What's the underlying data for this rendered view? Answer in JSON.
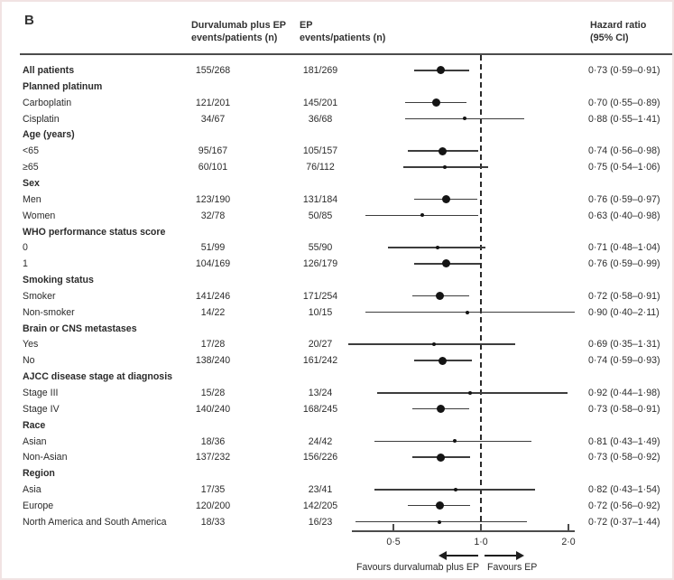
{
  "panel_label": "B",
  "columns": {
    "durvalumab": [
      "Durvalumab plus EP",
      "events/patients (n)"
    ],
    "ep": [
      "EP",
      "events/patients (n)"
    ],
    "hazard": [
      "Hazard ratio",
      "(95% CI)"
    ]
  },
  "chart_data": {
    "type": "scatter",
    "subtype": "forest-plot",
    "x_scale": "log2",
    "x_axis_range": [
      0.37,
      2.11
    ],
    "x_ticks": [
      0.5,
      1.0,
      2.0
    ],
    "x_tick_labels": [
      "0·5",
      "1·0",
      "2·0"
    ],
    "reference_line": 1.0,
    "favours_left": "Favours durvalumab plus EP",
    "favours_right": "Favours EP",
    "line_color": "#3d3d3d",
    "marker_color": "#141414",
    "rows": [
      {
        "label": "All patients",
        "bold": true,
        "durvalumab": "155/268",
        "ep": "181/269",
        "hr": 0.73,
        "ci_low": 0.59,
        "ci_high": 0.91,
        "hr_text": "0·73 (0·59–0·91)",
        "marker": "large"
      },
      {
        "label": "Planned platinum",
        "group": true
      },
      {
        "label": "Carboplatin",
        "durvalumab": "121/201",
        "ep": "145/201",
        "hr": 0.7,
        "ci_low": 0.55,
        "ci_high": 0.89,
        "hr_text": "0·70 (0·55–0·89)",
        "marker": "large"
      },
      {
        "label": "Cisplatin",
        "durvalumab": "34/67",
        "ep": "36/68",
        "hr": 0.88,
        "ci_low": 0.55,
        "ci_high": 1.41,
        "hr_text": "0·88 (0·55–1·41)",
        "marker": "small"
      },
      {
        "label": "Age (years)",
        "group": true
      },
      {
        "label": "<65",
        "durvalumab": "95/167",
        "ep": "105/157",
        "hr": 0.74,
        "ci_low": 0.56,
        "ci_high": 0.98,
        "hr_text": "0·74 (0·56–0·98)",
        "marker": "large"
      },
      {
        "label": "≥65",
        "durvalumab": "60/101",
        "ep": "76/112",
        "hr": 0.75,
        "ci_low": 0.54,
        "ci_high": 1.06,
        "hr_text": "0·75 (0·54–1·06)",
        "marker": "small"
      },
      {
        "label": "Sex",
        "group": true
      },
      {
        "label": "Men",
        "durvalumab": "123/190",
        "ep": "131/184",
        "hr": 0.76,
        "ci_low": 0.59,
        "ci_high": 0.97,
        "hr_text": "0·76 (0·59–0·97)",
        "marker": "large"
      },
      {
        "label": "Women",
        "durvalumab": "32/78",
        "ep": "50/85",
        "hr": 0.63,
        "ci_low": 0.4,
        "ci_high": 0.98,
        "hr_text": "0·63 (0·40–0·98)",
        "marker": "small"
      },
      {
        "label": "WHO performance status score",
        "group": true
      },
      {
        "label": "0",
        "durvalumab": "51/99",
        "ep": "55/90",
        "hr": 0.71,
        "ci_low": 0.48,
        "ci_high": 1.04,
        "hr_text": "0·71 (0·48–1·04)",
        "marker": "small"
      },
      {
        "label": "1",
        "durvalumab": "104/169",
        "ep": "126/179",
        "hr": 0.76,
        "ci_low": 0.59,
        "ci_high": 0.99,
        "hr_text": "0·76 (0·59–0·99)",
        "marker": "large"
      },
      {
        "label": "Smoking status",
        "group": true
      },
      {
        "label": "Smoker",
        "durvalumab": "141/246",
        "ep": "171/254",
        "hr": 0.72,
        "ci_low": 0.58,
        "ci_high": 0.91,
        "hr_text": "0·72 (0·58–0·91)",
        "marker": "large"
      },
      {
        "label": "Non-smoker",
        "durvalumab": "14/22",
        "ep": "10/15",
        "hr": 0.9,
        "ci_low": 0.4,
        "ci_high": 2.11,
        "hr_text": "0·90 (0·40–2·11)",
        "marker": "small"
      },
      {
        "label": "Brain or CNS metastases",
        "group": true
      },
      {
        "label": "Yes",
        "durvalumab": "17/28",
        "ep": "20/27",
        "hr": 0.69,
        "ci_low": 0.35,
        "ci_high": 1.31,
        "hr_text": "0·69 (0·35–1·31)",
        "marker": "small"
      },
      {
        "label": "No",
        "durvalumab": "138/240",
        "ep": "161/242",
        "hr": 0.74,
        "ci_low": 0.59,
        "ci_high": 0.93,
        "hr_text": "0·74 (0·59–0·93)",
        "marker": "large"
      },
      {
        "label": "AJCC disease stage at diagnosis",
        "group": true
      },
      {
        "label": "Stage III",
        "durvalumab": "15/28",
        "ep": "13/24",
        "hr": 0.92,
        "ci_low": 0.44,
        "ci_high": 1.98,
        "hr_text": "0·92 (0·44–1·98)",
        "marker": "small"
      },
      {
        "label": "Stage IV",
        "durvalumab": "140/240",
        "ep": "168/245",
        "hr": 0.73,
        "ci_low": 0.58,
        "ci_high": 0.91,
        "hr_text": "0·73 (0·58–0·91)",
        "marker": "large"
      },
      {
        "label": "Race",
        "group": true
      },
      {
        "label": "Asian",
        "durvalumab": "18/36",
        "ep": "24/42",
        "hr": 0.81,
        "ci_low": 0.43,
        "ci_high": 1.49,
        "hr_text": "0·81 (0·43–1·49)",
        "marker": "small"
      },
      {
        "label": "Non-Asian",
        "durvalumab": "137/232",
        "ep": "156/226",
        "hr": 0.73,
        "ci_low": 0.58,
        "ci_high": 0.92,
        "hr_text": "0·73 (0·58–0·92)",
        "marker": "large"
      },
      {
        "label": "Region",
        "group": true
      },
      {
        "label": "Asia",
        "durvalumab": "17/35",
        "ep": "23/41",
        "hr": 0.82,
        "ci_low": 0.43,
        "ci_high": 1.54,
        "hr_text": "0·82 (0·43–1·54)",
        "marker": "small"
      },
      {
        "label": "Europe",
        "durvalumab": "120/200",
        "ep": "142/205",
        "hr": 0.72,
        "ci_low": 0.56,
        "ci_high": 0.92,
        "hr_text": "0·72 (0·56–0·92)",
        "marker": "large"
      },
      {
        "label": "North America and South America",
        "durvalumab": "18/33",
        "ep": "16/23",
        "hr": 0.72,
        "ci_low": 0.37,
        "ci_high": 1.44,
        "hr_text": "0·72 (0·37–1·44)",
        "marker": "small"
      }
    ]
  }
}
